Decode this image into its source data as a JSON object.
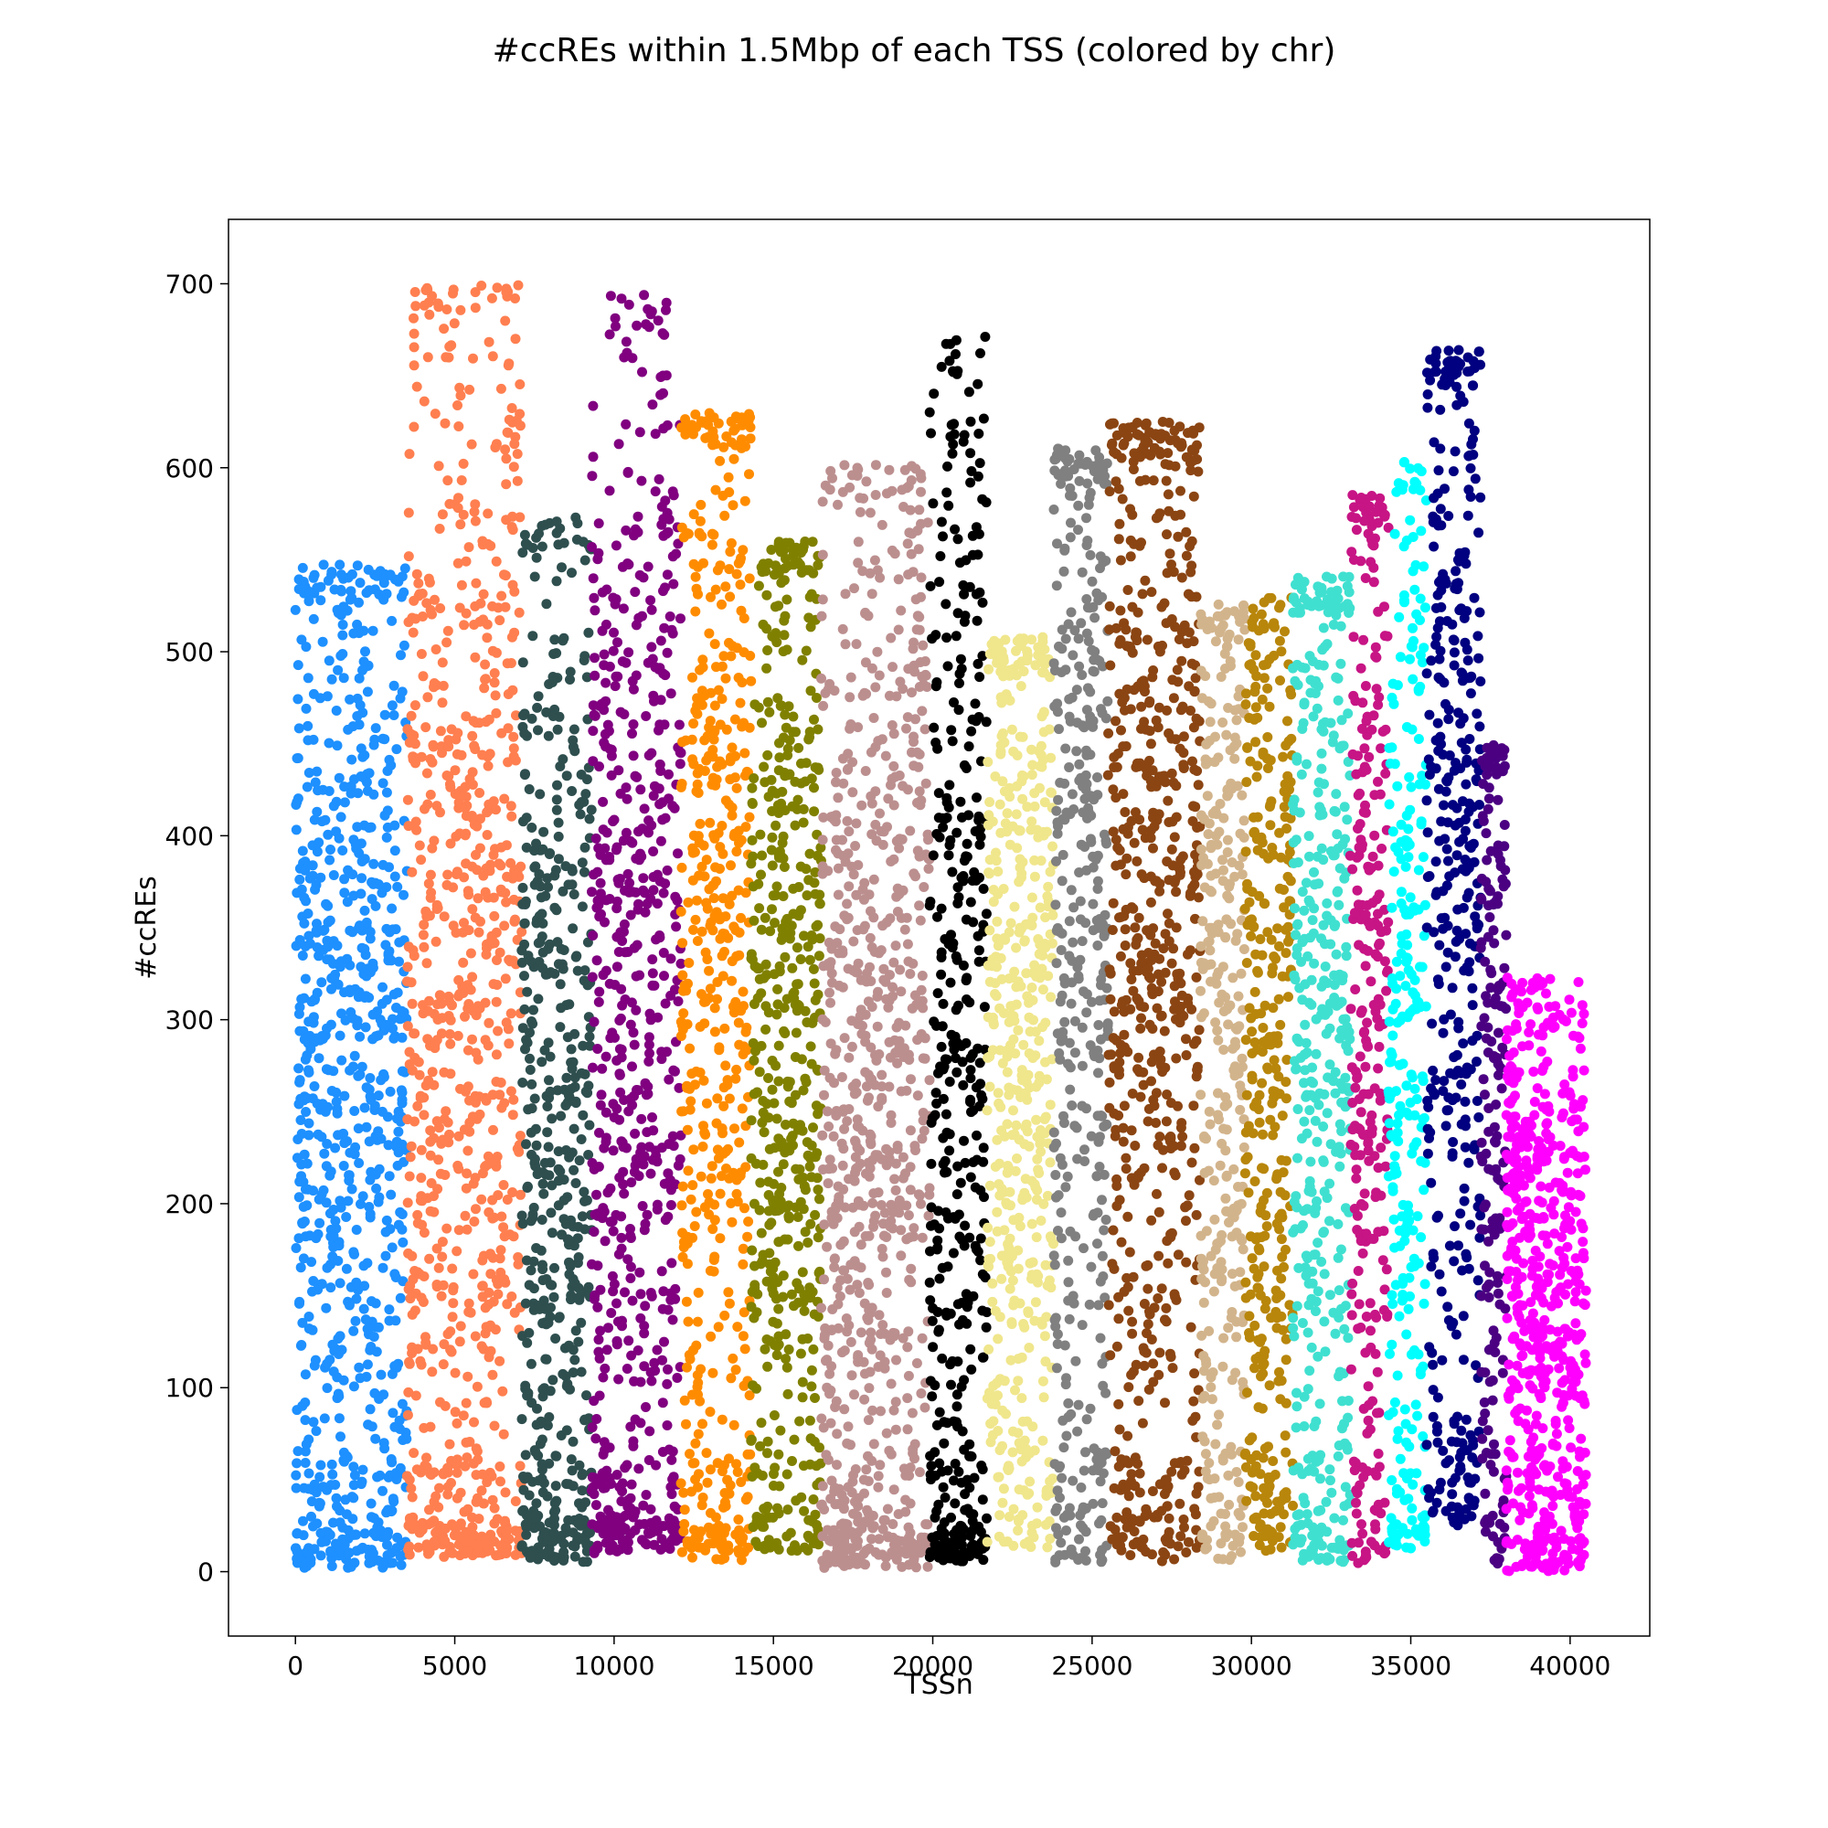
{
  "chart_data": {
    "type": "scatter",
    "title": "#ccREs within 1.5Mbp of each TSS (colored by chr)",
    "xlabel": "TSSn",
    "ylabel": "#ccREs",
    "xlim": [
      -2100,
      42500
    ],
    "ylim": [
      -35,
      735
    ],
    "xticks": [
      0,
      5000,
      10000,
      15000,
      20000,
      25000,
      30000,
      35000,
      40000
    ],
    "yticks": [
      0,
      100,
      200,
      300,
      400,
      500,
      600,
      700
    ],
    "grid": false,
    "legend": "none",
    "marker_size_data": 220,
    "groups": [
      {
        "color": "#1E90FF",
        "x_start": 0,
        "x_end": 3500,
        "y_min": 2,
        "y_max": 548,
        "center": 260,
        "peak_x": 2100
      },
      {
        "color": "#FF7F50",
        "x_start": 3500,
        "x_end": 7100,
        "y_min": 8,
        "y_max": 700,
        "center": 300,
        "peak_x": 6800
      },
      {
        "color": "#2F4F4F",
        "x_start": 7100,
        "x_end": 9300,
        "y_min": 5,
        "y_max": 573,
        "center": 250,
        "peak_x": 8300
      },
      {
        "color": "#800080",
        "x_start": 9300,
        "x_end": 12100,
        "y_min": 10,
        "y_max": 695,
        "center": 300,
        "peak_x": 11550
      },
      {
        "color": "#FF8C00",
        "x_start": 12100,
        "x_end": 14300,
        "y_min": 5,
        "y_max": 630,
        "center": 340,
        "peak_x": 13700
      },
      {
        "color": "#808000",
        "x_start": 14300,
        "x_end": 16500,
        "y_min": 10,
        "y_max": 560,
        "center": 300,
        "peak_x": 15300
      },
      {
        "color": "#BC8F8F",
        "x_start": 16500,
        "x_end": 19900,
        "y_min": 2,
        "y_max": 603,
        "center": 260,
        "peak_x": 19500
      },
      {
        "color": "#000000",
        "x_start": 19900,
        "x_end": 21700,
        "y_min": 5,
        "y_max": 672,
        "center": 270,
        "peak_x": 21400
      },
      {
        "color": "#F0E68C",
        "x_start": 21700,
        "x_end": 23800,
        "y_min": 12,
        "y_max": 508,
        "center": 300,
        "peak_x": 23400
      },
      {
        "color": "#808080",
        "x_start": 23800,
        "x_end": 25500,
        "y_min": 5,
        "y_max": 611,
        "center": 350,
        "peak_x": 24900
      },
      {
        "color": "#8B4513",
        "x_start": 25500,
        "x_end": 28400,
        "y_min": 5,
        "y_max": 625,
        "center": 370,
        "peak_x": 28100
      },
      {
        "color": "#D2B48C",
        "x_start": 28400,
        "x_end": 29800,
        "y_min": 5,
        "y_max": 526,
        "center": 300,
        "peak_x": 29300
      },
      {
        "color": "#B8860B",
        "x_start": 29800,
        "x_end": 31300,
        "y_min": 10,
        "y_max": 530,
        "center": 280,
        "peak_x": 31200
      },
      {
        "color": "#40E0D0",
        "x_start": 31300,
        "x_end": 33100,
        "y_min": 5,
        "y_max": 541,
        "center": 290,
        "peak_x": 32300
      },
      {
        "color": "#C71585",
        "x_start": 33100,
        "x_end": 34300,
        "y_min": 3,
        "y_max": 586,
        "center": 330,
        "peak_x": 33800
      },
      {
        "color": "#00FFFF",
        "x_start": 34300,
        "x_end": 35500,
        "y_min": 12,
        "y_max": 604,
        "center": 300,
        "peak_x": 35300
      },
      {
        "color": "#000080",
        "x_start": 35500,
        "x_end": 37200,
        "y_min": 25,
        "y_max": 664,
        "center": 400,
        "peak_x": 36000
      },
      {
        "color": "#4B0082",
        "x_start": 37200,
        "x_end": 38000,
        "y_min": 3,
        "y_max": 450,
        "center": 270,
        "peak_x": 37500
      },
      {
        "color": "#FF00FF",
        "x_start": 38000,
        "x_end": 40500,
        "y_min": 0,
        "y_max": 323,
        "center": 150,
        "peak_x": 38200
      }
    ]
  }
}
